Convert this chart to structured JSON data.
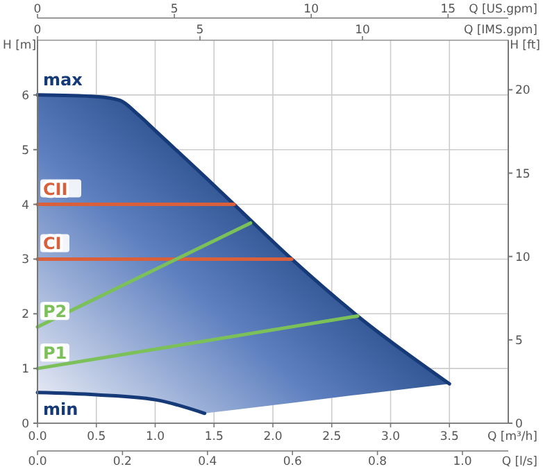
{
  "chart_data": {
    "type": "line",
    "xlabel": "Q [m³/h]",
    "ylabel": "H [m]",
    "y2label": "H [ft]",
    "x2label": "Q [US.gpm]",
    "xlim": [
      0,
      4
    ],
    "xticks": [
      {
        "value": 0,
        "label": "0.0"
      },
      {
        "value": 0.5,
        "label": "0.5"
      },
      {
        "value": 1,
        "label": "1.0"
      },
      {
        "value": 1.5,
        "label": "1.5"
      },
      {
        "value": 2,
        "label": "2.0"
      },
      {
        "value": 2.5,
        "label": "2.5"
      },
      {
        "value": 3,
        "label": "3.0"
      },
      {
        "value": 3.5,
        "label": "3.5"
      }
    ],
    "x2lim": [
      0,
      17.2
    ],
    "x2ticks": [
      0,
      5,
      10,
      15
    ],
    "ylim": [
      0,
      7
    ],
    "yticks": [
      0,
      1,
      2,
      3,
      4,
      5,
      6
    ],
    "y2lim": [
      0,
      22.97
    ],
    "y2ticks": [
      0,
      5,
      10,
      15,
      20
    ],
    "grid": true,
    "annotations": [
      "0",
      "5",
      "10",
      "Q [IMS.gpm]",
      "0.0",
      "0.2",
      "0.4",
      "0.6",
      "0.8",
      "1.0",
      "Q [l/s]"
    ],
    "series": [
      {
        "name": "max",
        "color": "#163a78",
        "x": [
          0,
          0.5,
          0.7,
          0.85,
          1.0,
          1.42,
          1.67,
          2.16,
          2.72,
          3.5
        ],
        "values": [
          6,
          5.97,
          5.9,
          5.65,
          5.35,
          4.51,
          4,
          3,
          1.96,
          0.72
        ],
        "upper": [
          6,
          5.97,
          5.9,
          5.65,
          5.35,
          4.51,
          4,
          3,
          1.96,
          0.72
        ],
        "lower": [
          0.56,
          0.52,
          0.49,
          0.46,
          0.43,
          0.18,
          0.245,
          0.37,
          0.52,
          0.72
        ]
      },
      {
        "name": "min",
        "color": "#163a78",
        "x": [
          0,
          0.5,
          1.0,
          1.42
        ],
        "values": [
          0.56,
          0.52,
          0.43,
          0.18
        ]
      },
      {
        "name": "CII",
        "color": "#d9603a",
        "x": [
          0,
          1.67
        ],
        "values": [
          4,
          4
        ]
      },
      {
        "name": "CI",
        "color": "#d9603a",
        "x": [
          0,
          2.16
        ],
        "values": [
          3,
          3
        ]
      },
      {
        "name": "P2",
        "color": "#7cc05a",
        "x": [
          0,
          1.81
        ],
        "values": [
          1.76,
          3.66
        ]
      },
      {
        "name": "P1",
        "color": "#7cc05a",
        "x": [
          0,
          2.72
        ],
        "values": [
          1.0,
          1.96
        ]
      }
    ]
  }
}
